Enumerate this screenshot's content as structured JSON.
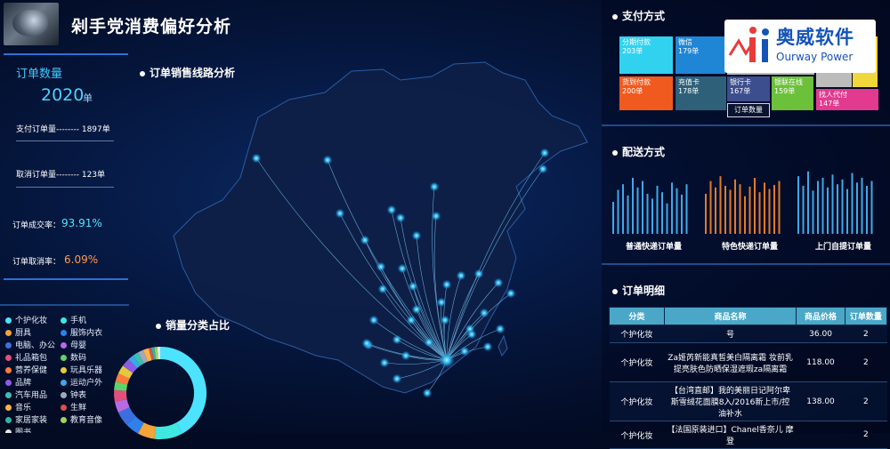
{
  "header": {
    "title": "剁手党消费偏好分析"
  },
  "left": {
    "count_title": "订单数量",
    "count_value": "2020",
    "count_unit": "单",
    "paid_label": "支付订单量-------- 1897单",
    "cancel_label": "取消订单量-------- 123单",
    "success_rate_label": "订单成交率：",
    "success_rate_value": "93.91%",
    "cancel_rate_label": "订单取消率：",
    "cancel_rate_value": "6.09%"
  },
  "map": {
    "title": "订单销售线路分析"
  },
  "category": {
    "title": "销量分类占比",
    "items": [
      {
        "label": "个护化妆",
        "color": "#4de3ff"
      },
      {
        "label": "手机",
        "color": "#3ee8e0"
      },
      {
        "label": "厨具",
        "color": "#f2a33a"
      },
      {
        "label": "服饰内衣",
        "color": "#2f80e8"
      },
      {
        "label": "电脑、办公",
        "color": "#3b6fe0"
      },
      {
        "label": "母婴",
        "color": "#b66be3"
      },
      {
        "label": "礼品箱包",
        "color": "#e34f7c"
      },
      {
        "label": "数码",
        "color": "#5ed36b"
      },
      {
        "label": "营养保健",
        "color": "#ff7a3d"
      },
      {
        "label": "玩具乐器",
        "color": "#e6c93b"
      },
      {
        "label": "品牌",
        "color": "#8c5be6"
      },
      {
        "label": "运动户外",
        "color": "#3ba9e8"
      },
      {
        "label": "汽车用品",
        "color": "#3cc0b0"
      },
      {
        "label": "钟表",
        "color": "#a0a9b8"
      },
      {
        "label": "音乐",
        "color": "#ffb347"
      },
      {
        "label": "生鲜",
        "color": "#d94f4f"
      },
      {
        "label": "家居家装",
        "color": "#2ab7a9"
      },
      {
        "label": "教育音像",
        "color": "#9bd45a"
      },
      {
        "label": "图书",
        "color": "#e7e7e7"
      }
    ]
  },
  "payment": {
    "title": "支付方式",
    "tiles": [
      {
        "label": "分期付款",
        "value": "203单",
        "color": "#31d2f0"
      },
      {
        "label": "微信",
        "value": "179单",
        "color": "#1f86d6"
      },
      {
        "label": "货到付款",
        "value": "200单",
        "color": "#f05a1e"
      },
      {
        "label": "充值卡",
        "value": "178单",
        "color": "#2e607a"
      },
      {
        "label": "银行卡",
        "value": "167单",
        "color": "#3d4e8f"
      },
      {
        "label": "银联在线",
        "value": "159单",
        "color": "#6cc13a"
      },
      {
        "label": "找人代付",
        "value": "147单",
        "color": "#e23a8f"
      }
    ],
    "legend_label": "订单数量"
  },
  "logo": {
    "cn": "奥威软件",
    "en": "Ourway Power"
  },
  "delivery": {
    "title": "配送方式",
    "groups": [
      {
        "label": "普通快递订单量",
        "color": "#3fa9e8",
        "values": [
          40,
          55,
          62,
          48,
          70,
          58,
          66,
          50,
          44,
          60,
          52,
          38,
          64,
          57,
          49,
          62
        ]
      },
      {
        "label": "特色快递订单量",
        "color": "#e07b2e",
        "values": [
          50,
          66,
          58,
          72,
          60,
          55,
          68,
          62,
          47,
          59,
          70,
          52,
          64,
          56,
          61,
          66
        ]
      },
      {
        "label": "上门自提订单量",
        "color": "#3fa9e8",
        "values": [
          72,
          60,
          78,
          54,
          66,
          70,
          58,
          74,
          62,
          68,
          56,
          76,
          64,
          70,
          60,
          66
        ]
      }
    ]
  },
  "orders": {
    "title": "订单明细",
    "columns": [
      "分类",
      "商品名称",
      "商品价格",
      "订单数量"
    ],
    "rows": [
      [
        "个护化妆",
        "号",
        "36.00",
        "2"
      ],
      [
        "个护化妆",
        "Za姬芮新能真皙美白隔离霜 妆前乳提亮肤色防晒保湿遮瑕za隔离霜",
        "118.00",
        "2"
      ],
      [
        "个护化妆",
        "【台湾直邮】我的美丽日记阿尔卑斯雪绒花面膜8入/2016新上市/控油补水",
        "138.00",
        "2"
      ],
      [
        "个护化妆",
        "【法国原装进口】Chanel香奈儿 摩登",
        "",
        "2"
      ]
    ]
  }
}
